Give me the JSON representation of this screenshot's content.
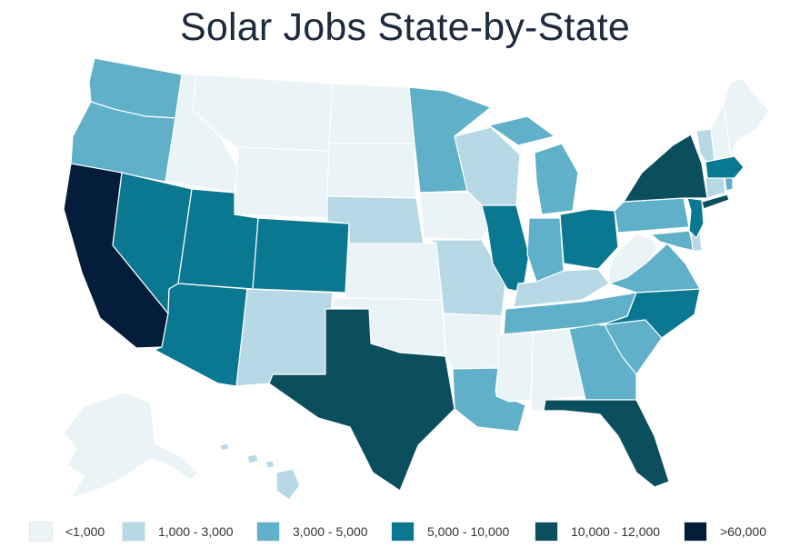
{
  "title": "Solar Jobs State-by-State",
  "palette": {
    "lt1k": "#eaf3f6",
    "1to3k": "#b6d9e5",
    "3to5k": "#5fb0c8",
    "5to10k": "#0b7891",
    "10to12k": "#0b4f5e",
    "gt60k": "#031d3a"
  },
  "legend": [
    {
      "label": "<1,000",
      "bucket": "lt1k"
    },
    {
      "label": "1,000 - 3,000",
      "bucket": "1to3k"
    },
    {
      "label": "3,000 - 5,000",
      "bucket": "3to5k"
    },
    {
      "label": "5,000 - 10,000",
      "bucket": "5to10k"
    },
    {
      "label": "10,000 - 12,000",
      "bucket": "10to12k"
    },
    {
      "label": ">60,000",
      "bucket": "gt60k"
    }
  ],
  "states": {
    "WA": "3to5k",
    "OR": "3to5k",
    "CA": "gt60k",
    "NV": "5to10k",
    "ID": "lt1k",
    "MT": "lt1k",
    "WY": "lt1k",
    "UT": "5to10k",
    "CO": "5to10k",
    "AZ": "5to10k",
    "NM": "1to3k",
    "ND": "lt1k",
    "SD": "lt1k",
    "NE": "1to3k",
    "KS": "lt1k",
    "OK": "lt1k",
    "TX": "10to12k",
    "MN": "3to5k",
    "IA": "lt1k",
    "MO": "1to3k",
    "AR": "lt1k",
    "LA": "3to5k",
    "WI": "1to3k",
    "IL": "5to10k",
    "MI": "3to5k",
    "IN": "3to5k",
    "OH": "5to10k",
    "KY": "1to3k",
    "TN": "3to5k",
    "MS": "lt1k",
    "AL": "lt1k",
    "GA": "3to5k",
    "FL": "10to12k",
    "SC": "3to5k",
    "NC": "5to10k",
    "VA": "3to5k",
    "WV": "lt1k",
    "MD": "3to5k",
    "DE": "1to3k",
    "NJ": "5to10k",
    "PA": "3to5k",
    "NY": "10to12k",
    "CT": "1to3k",
    "RI": "3to5k",
    "MA": "5to10k",
    "VT": "1to3k",
    "NH": "lt1k",
    "ME": "lt1k",
    "AK": "lt1k",
    "HI": "1to3k"
  }
}
